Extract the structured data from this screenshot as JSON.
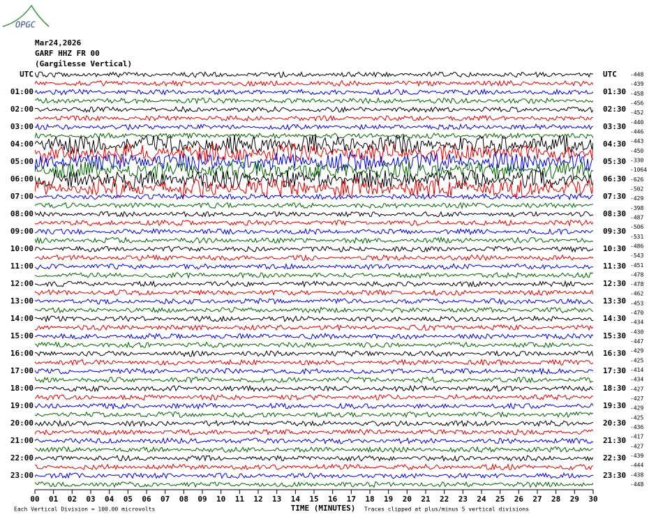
{
  "logo": "OPGC",
  "header": {
    "date": "Mar24,2026",
    "station": "GARF HHZ FR 00",
    "location": "(Gargilesse Vertical)"
  },
  "left_labels": [
    "UTC",
    "01:00",
    "02:00",
    "03:00",
    "04:00",
    "05:00",
    "06:00",
    "07:00",
    "08:00",
    "09:00",
    "10:00",
    "11:00",
    "12:00",
    "13:00",
    "14:00",
    "15:00",
    "16:00",
    "17:00",
    "18:00",
    "19:00",
    "20:00",
    "21:00",
    "22:00",
    "23:00"
  ],
  "right_labels": [
    "UTC",
    "01:30",
    "02:30",
    "03:30",
    "04:30",
    "05:30",
    "06:30",
    "07:30",
    "08:30",
    "09:30",
    "10:30",
    "11:30",
    "12:30",
    "13:30",
    "14:30",
    "15:30",
    "16:30",
    "17:30",
    "18:30",
    "19:30",
    "20:30",
    "21:30",
    "22:30",
    "23:30"
  ],
  "trace_offsets": [
    "-448",
    "-439",
    "-458",
    "-456",
    "-452",
    "-440",
    "-446",
    "-443",
    "-450",
    "-330",
    "-1064",
    "-626",
    "-502",
    "-429",
    "-398",
    "-487",
    "-506",
    "-531",
    "-486",
    "-543",
    "-451",
    "-478",
    "-478",
    "-462",
    "-453",
    "-470",
    "-434",
    "-430",
    "-447",
    "-429",
    "-425",
    "-414",
    "-434",
    "-427",
    "-427",
    "-429",
    "-425",
    "-436",
    "-417",
    "-427",
    "-439",
    "-444",
    "-438",
    "-448"
  ],
  "x_axis": {
    "ticks": [
      "00",
      "01",
      "02",
      "03",
      "04",
      "05",
      "06",
      "07",
      "08",
      "09",
      "10",
      "11",
      "12",
      "13",
      "14",
      "15",
      "16",
      "17",
      "18",
      "19",
      "20",
      "21",
      "22",
      "23",
      "24",
      "25",
      "26",
      "27",
      "28",
      "29",
      "30"
    ],
    "title": "TIME (MINUTES)"
  },
  "footer": {
    "scale": "Each Vertical Division =  100.00 microvolts",
    "clipping": "Traces clipped at plus/minus 5 vertical divisions"
  }
}
